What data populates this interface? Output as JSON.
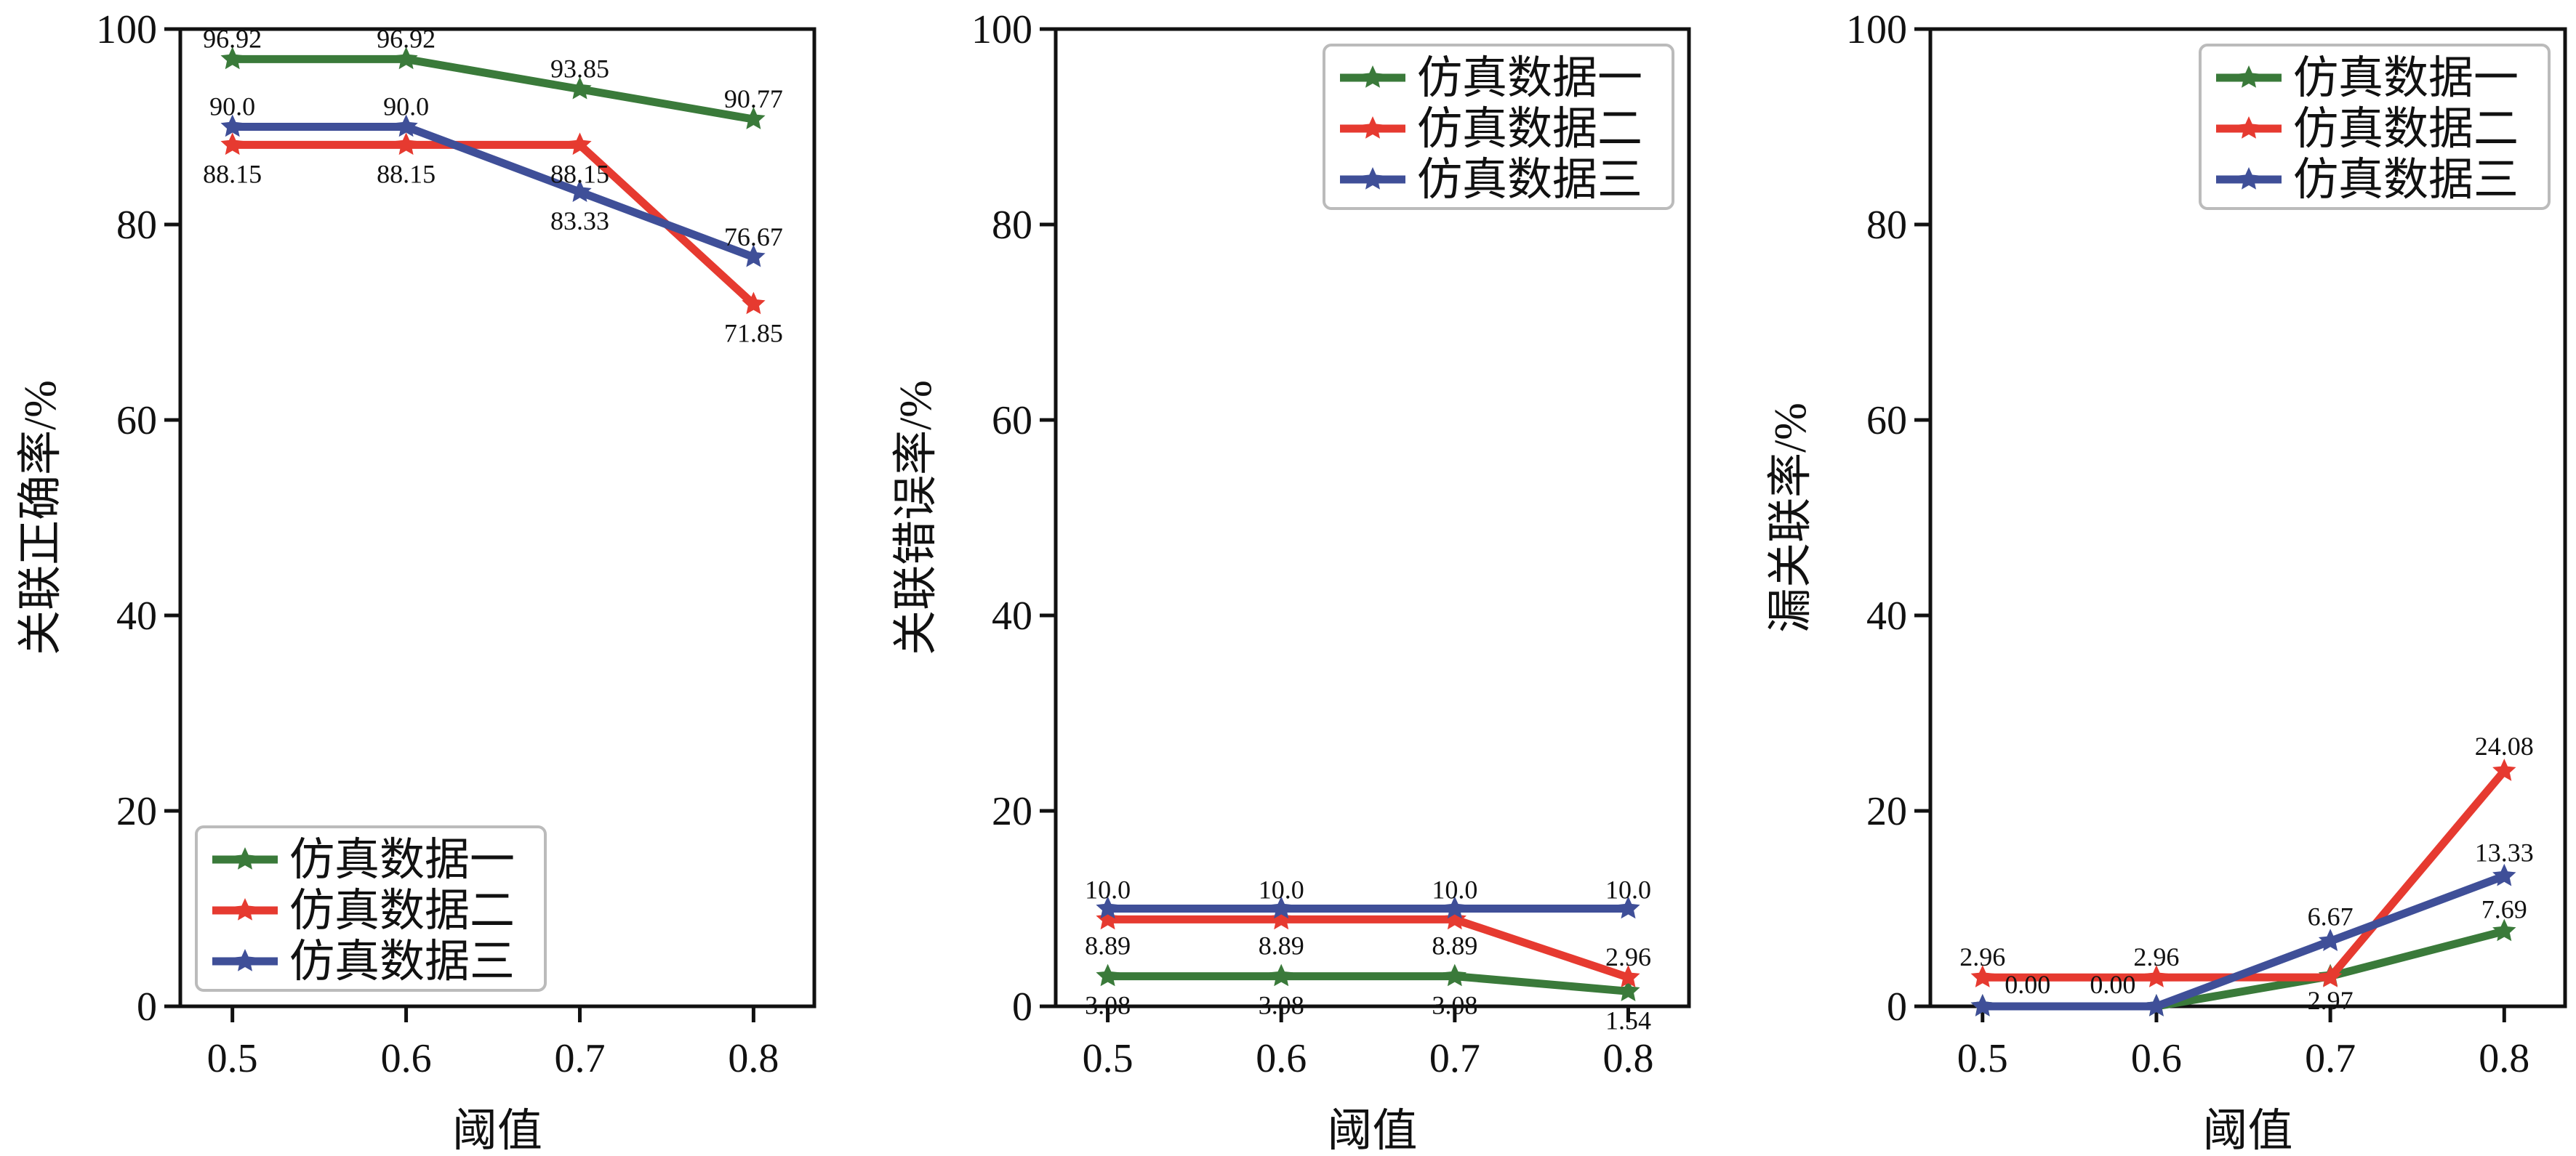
{
  "colors": {
    "series1": "#3a7a3a",
    "series2": "#e63a30",
    "series3": "#3f4f98",
    "axis": "#111111",
    "legend_border": "#bbbbbb"
  },
  "series_names": [
    "仿真数据一",
    "仿真数据二",
    "仿真数据三"
  ],
  "chart_data": [
    {
      "type": "line",
      "x": [
        0.5,
        0.6,
        0.7,
        0.8
      ],
      "xticklabels": [
        "0.5",
        "0.6",
        "0.7",
        "0.8"
      ],
      "xlabel": "阈值",
      "ylabel": "关联正确率/%",
      "ylim": [
        0,
        100
      ],
      "yticks": [
        0,
        20,
        40,
        60,
        80,
        100
      ],
      "legend_position": "lower-left",
      "marker": "star",
      "series": [
        {
          "name": "仿真数据一",
          "values": [
            96.92,
            96.92,
            93.85,
            90.77
          ],
          "labels": [
            "96.92",
            "96.92",
            "93.85",
            "90.77"
          ]
        },
        {
          "name": "仿真数据二",
          "values": [
            88.15,
            88.15,
            88.15,
            71.85
          ],
          "labels": [
            "88.15",
            "88.15",
            "88.15",
            "71.85"
          ]
        },
        {
          "name": "仿真数据三",
          "values": [
            90.0,
            90.0,
            83.33,
            76.67
          ],
          "labels": [
            "90.0",
            "90.0",
            "83.33",
            "76.67"
          ]
        }
      ]
    },
    {
      "type": "line",
      "x": [
        0.5,
        0.6,
        0.7,
        0.8
      ],
      "xticklabels": [
        "0.5",
        "0.6",
        "0.7",
        "0.8"
      ],
      "xlabel": "阈值",
      "ylabel": "关联错误率/%",
      "ylim": [
        0,
        100
      ],
      "yticks": [
        0,
        20,
        40,
        60,
        80,
        100
      ],
      "legend_position": "upper-right",
      "marker": "star",
      "series": [
        {
          "name": "仿真数据一",
          "values": [
            3.08,
            3.08,
            3.08,
            1.54
          ],
          "labels": [
            "3.08",
            "3.08",
            "3.08",
            "1.54"
          ]
        },
        {
          "name": "仿真数据二",
          "values": [
            8.89,
            8.89,
            8.89,
            2.96
          ],
          "labels": [
            "8.89",
            "8.89",
            "8.89",
            "2.96"
          ]
        },
        {
          "name": "仿真数据三",
          "values": [
            10.0,
            10.0,
            10.0,
            10.0
          ],
          "labels": [
            "10.0",
            "10.0",
            "10.0",
            "10.0"
          ]
        }
      ]
    },
    {
      "type": "line",
      "x": [
        0.5,
        0.6,
        0.7,
        0.8
      ],
      "xticklabels": [
        "0.5",
        "0.6",
        "0.7",
        "0.8"
      ],
      "xlabel": "阈值",
      "ylabel": "漏关联率/%",
      "ylim": [
        0,
        100
      ],
      "yticks": [
        0,
        20,
        40,
        60,
        80,
        100
      ],
      "legend_position": "upper-right",
      "marker": "star",
      "series": [
        {
          "name": "仿真数据一",
          "values": [
            0.0,
            0.0,
            3.08,
            7.69
          ],
          "labels": [
            "",
            "",
            "",
            "7.69"
          ]
        },
        {
          "name": "仿真数据二",
          "values": [
            2.96,
            2.96,
            2.97,
            24.08
          ],
          "labels": [
            "2.96",
            "2.96",
            "2.97",
            "24.08"
          ]
        },
        {
          "name": "仿真数据三",
          "values": [
            0.0,
            0.0,
            6.67,
            13.33
          ],
          "labels": [
            "0.00",
            "0.00",
            "6.67",
            "13.33"
          ]
        }
      ]
    }
  ]
}
